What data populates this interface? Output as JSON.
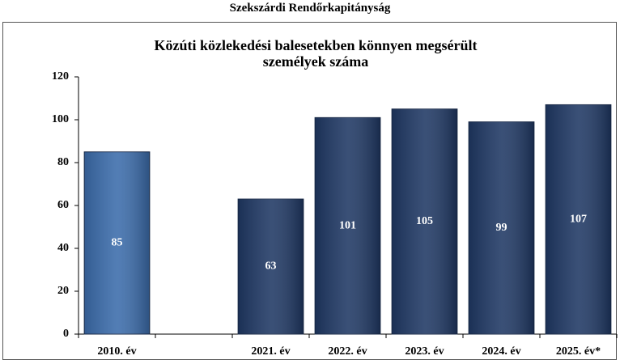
{
  "chart_data": {
    "type": "bar",
    "header": "Szekszárdi Rendőrkapitányság",
    "title": "Közúti közlekedési balesetekben könnyen megsérült személyek száma",
    "categories": [
      "2010. év",
      null,
      "2021. év",
      "2022. év",
      "2023. év",
      "2024. év",
      "2025. év*"
    ],
    "values": [
      85,
      null,
      63,
      101,
      105,
      99,
      107
    ],
    "colors": [
      "#3b6cab",
      null,
      "#1f3864",
      "#1f3864",
      "#1f3864",
      "#1f3864",
      "#1f3864"
    ],
    "ylim": [
      0,
      120
    ],
    "yticks": [
      0,
      20,
      40,
      60,
      80,
      100,
      120
    ],
    "grid": false
  }
}
